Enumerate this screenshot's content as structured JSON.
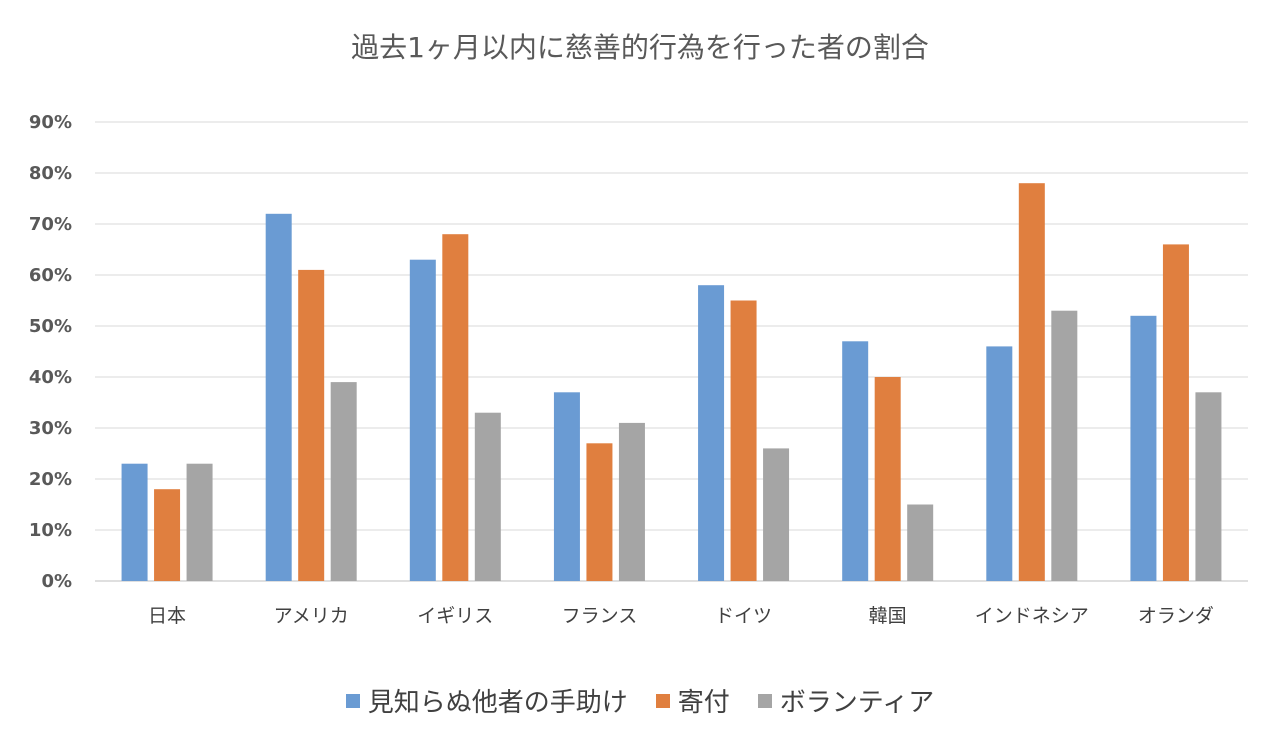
{
  "chart_data": {
    "type": "bar",
    "title": "過去1ヶ月以内に慈善的行為を行った者の割合",
    "xlabel": "",
    "ylabel": "",
    "ylim": [
      0,
      90
    ],
    "yticks": [
      "0%",
      "10%",
      "20%",
      "30%",
      "40%",
      "50%",
      "60%",
      "70%",
      "80%",
      "90%"
    ],
    "grid": true,
    "legend_position": "bottom",
    "categories": [
      "日本",
      "アメリカ",
      "イギリス",
      "フランス",
      "ドイツ",
      "韓国",
      "インドネシア",
      "オランダ"
    ],
    "series": [
      {
        "name": "見知らぬ他者の手助け",
        "color": "#6a9bd3",
        "values": [
          23,
          72,
          63,
          37,
          58,
          47,
          46,
          52
        ]
      },
      {
        "name": "寄付",
        "color": "#e07f3f",
        "values": [
          18,
          61,
          68,
          27,
          55,
          40,
          78,
          66
        ]
      },
      {
        "name": "ボランティア",
        "color": "#a5a5a5",
        "values": [
          23,
          39,
          33,
          31,
          26,
          15,
          53,
          37
        ]
      }
    ]
  }
}
